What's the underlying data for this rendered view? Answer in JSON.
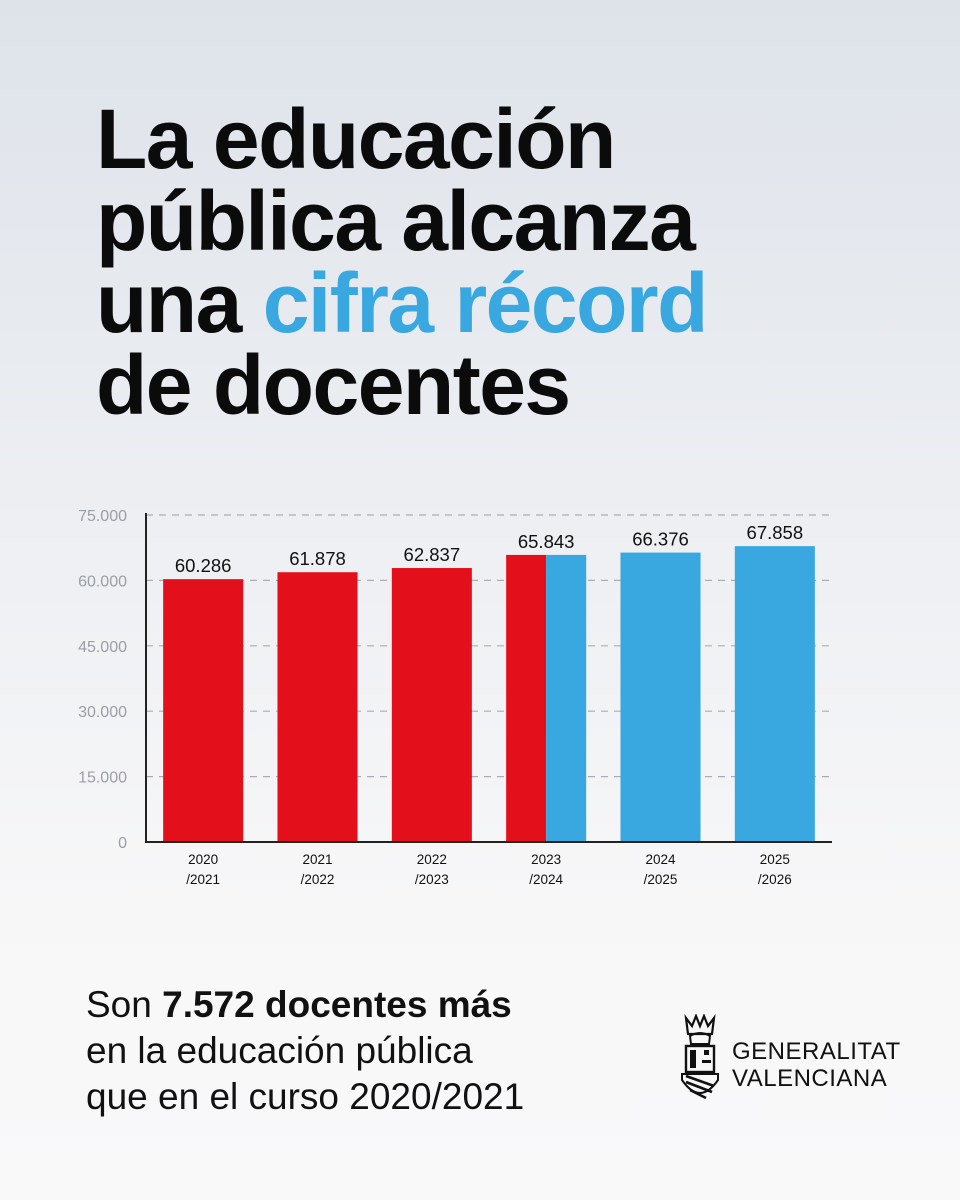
{
  "headline": {
    "line1": "La educación",
    "line2": "pública alcanza",
    "line3_plain": "una ",
    "line3_accent": "cifra récord",
    "line4": "de docentes"
  },
  "colors": {
    "accent": "#3aa8e0",
    "red": "#e3101c",
    "blue": "#3aa8e0",
    "text": "#0b0b0b"
  },
  "chart_data": {
    "type": "bar",
    "categories": [
      [
        "2020",
        "/2021"
      ],
      [
        "2021",
        "/2022"
      ],
      [
        "2022",
        "/2023"
      ],
      [
        "2023",
        "/2024"
      ],
      [
        "2024",
        "/2025"
      ],
      [
        "2025",
        "/2026"
      ]
    ],
    "values": [
      60286,
      61878,
      62837,
      65843,
      66376,
      67858
    ],
    "value_labels": [
      "60.286",
      "61.878",
      "62.837",
      "65.843",
      "66.376",
      "67.858"
    ],
    "bar_colors": [
      "red",
      "red",
      "red",
      "split-red-blue",
      "blue",
      "blue"
    ],
    "yticks": [
      0,
      15000,
      30000,
      45000,
      60000,
      75000
    ],
    "ytick_labels": [
      "0",
      "15.000",
      "30.000",
      "45.000",
      "60.000",
      "75.000"
    ],
    "ylim": [
      0,
      75000
    ],
    "grid": "dashed",
    "title": "",
    "xlabel": "",
    "ylabel": ""
  },
  "footer": {
    "line1_plain": "Son ",
    "line1_bold": "7.572 docentes más",
    "line2": "en la educación pública",
    "line3": "que en el curso 2020/2021"
  },
  "brand": {
    "name_line1": "GENERALITAT",
    "name_line2": "VALENCIANA",
    "logo_icon": "coat-of-arms-icon"
  }
}
